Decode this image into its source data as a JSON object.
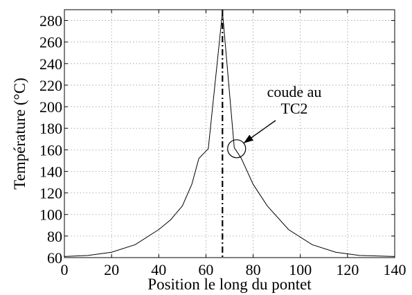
{
  "chart_data": {
    "type": "line",
    "xlabel": "Position le long du pontet",
    "ylabel": "Température (°C)",
    "xlim": [
      0,
      140
    ],
    "ylim": [
      60,
      290
    ],
    "xticks": [
      0,
      20,
      40,
      60,
      80,
      100,
      120,
      140
    ],
    "yticks": [
      60,
      80,
      100,
      120,
      140,
      160,
      180,
      200,
      220,
      240,
      260,
      280
    ],
    "grid": true,
    "series": [
      {
        "x": [
          0,
          10,
          20,
          30,
          40,
          45,
          50,
          54,
          57,
          61,
          67,
          72,
          75,
          80,
          86,
          95,
          105,
          115,
          125,
          140
        ],
        "y": [
          61,
          62,
          65,
          72,
          86,
          95,
          108,
          128,
          152,
          161,
          288,
          162,
          152,
          128,
          108,
          86,
          72,
          65,
          62,
          61
        ]
      }
    ],
    "vline": {
      "x": 67,
      "style": "dash-dot"
    },
    "annotation": {
      "lines": [
        "coude au",
        "TC2"
      ],
      "marker_x": 73,
      "marker_y": 161,
      "marker": "circle"
    }
  }
}
